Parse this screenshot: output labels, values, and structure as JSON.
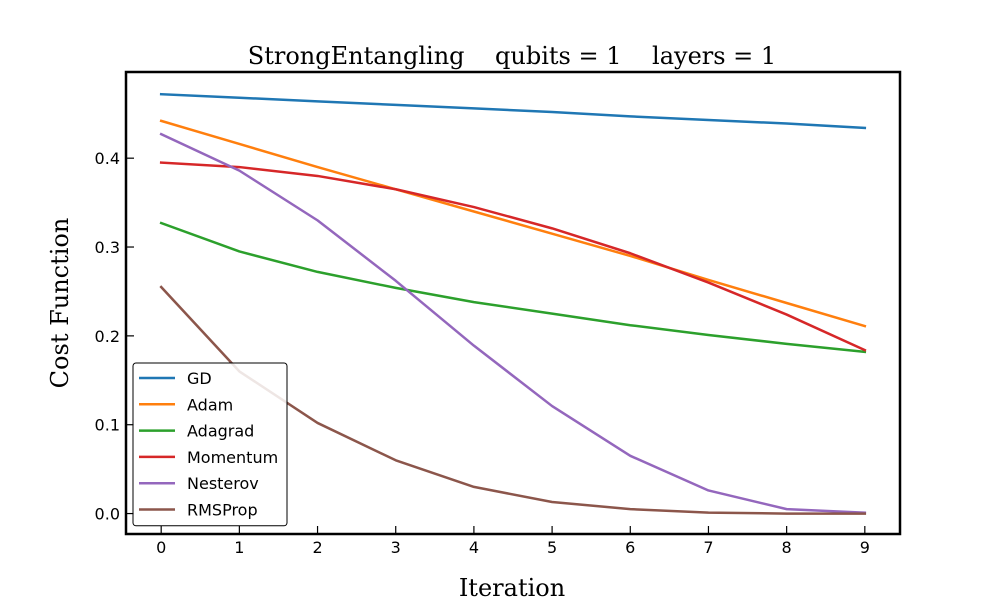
{
  "chart_data": {
    "type": "line",
    "title": "StrongEntangling    qubits = 1    layers = 1",
    "xlabel": "Iteration",
    "ylabel": "Cost Function",
    "xlim": [
      -0.45,
      9.45
    ],
    "ylim": [
      -0.023,
      0.497
    ],
    "x": [
      0,
      1,
      2,
      3,
      4,
      5,
      6,
      7,
      8,
      9
    ],
    "xticks": [
      "0",
      "1",
      "2",
      "3",
      "4",
      "5",
      "6",
      "7",
      "8",
      "9"
    ],
    "yticks": [
      "0.0",
      "0.1",
      "0.2",
      "0.3",
      "0.4"
    ],
    "ytick_values": [
      0.0,
      0.1,
      0.2,
      0.3,
      0.4
    ],
    "grid": false,
    "legend_position": "lower-left",
    "series": [
      {
        "name": "GD",
        "color": "#1f77b4",
        "values": [
          0.472,
          0.468,
          0.464,
          0.46,
          0.456,
          0.452,
          0.447,
          0.443,
          0.439,
          0.434
        ]
      },
      {
        "name": "Adam",
        "color": "#ff7f0e",
        "values": [
          0.442,
          0.416,
          0.39,
          0.365,
          0.34,
          0.315,
          0.29,
          0.263,
          0.237,
          0.211
        ]
      },
      {
        "name": "Adagrad",
        "color": "#2ca02c",
        "values": [
          0.327,
          0.295,
          0.272,
          0.254,
          0.238,
          0.225,
          0.212,
          0.201,
          0.191,
          0.182
        ]
      },
      {
        "name": "Momentum",
        "color": "#d62728",
        "values": [
          0.395,
          0.39,
          0.38,
          0.365,
          0.345,
          0.321,
          0.293,
          0.26,
          0.224,
          0.184
        ]
      },
      {
        "name": "Nesterov",
        "color": "#9467bd",
        "values": [
          0.427,
          0.386,
          0.33,
          0.262,
          0.189,
          0.121,
          0.065,
          0.026,
          0.005,
          0.001
        ]
      },
      {
        "name": "RMSProp",
        "color": "#8c564b",
        "values": [
          0.255,
          0.16,
          0.102,
          0.06,
          0.03,
          0.013,
          0.005,
          0.001,
          0.0,
          0.0
        ]
      }
    ]
  }
}
